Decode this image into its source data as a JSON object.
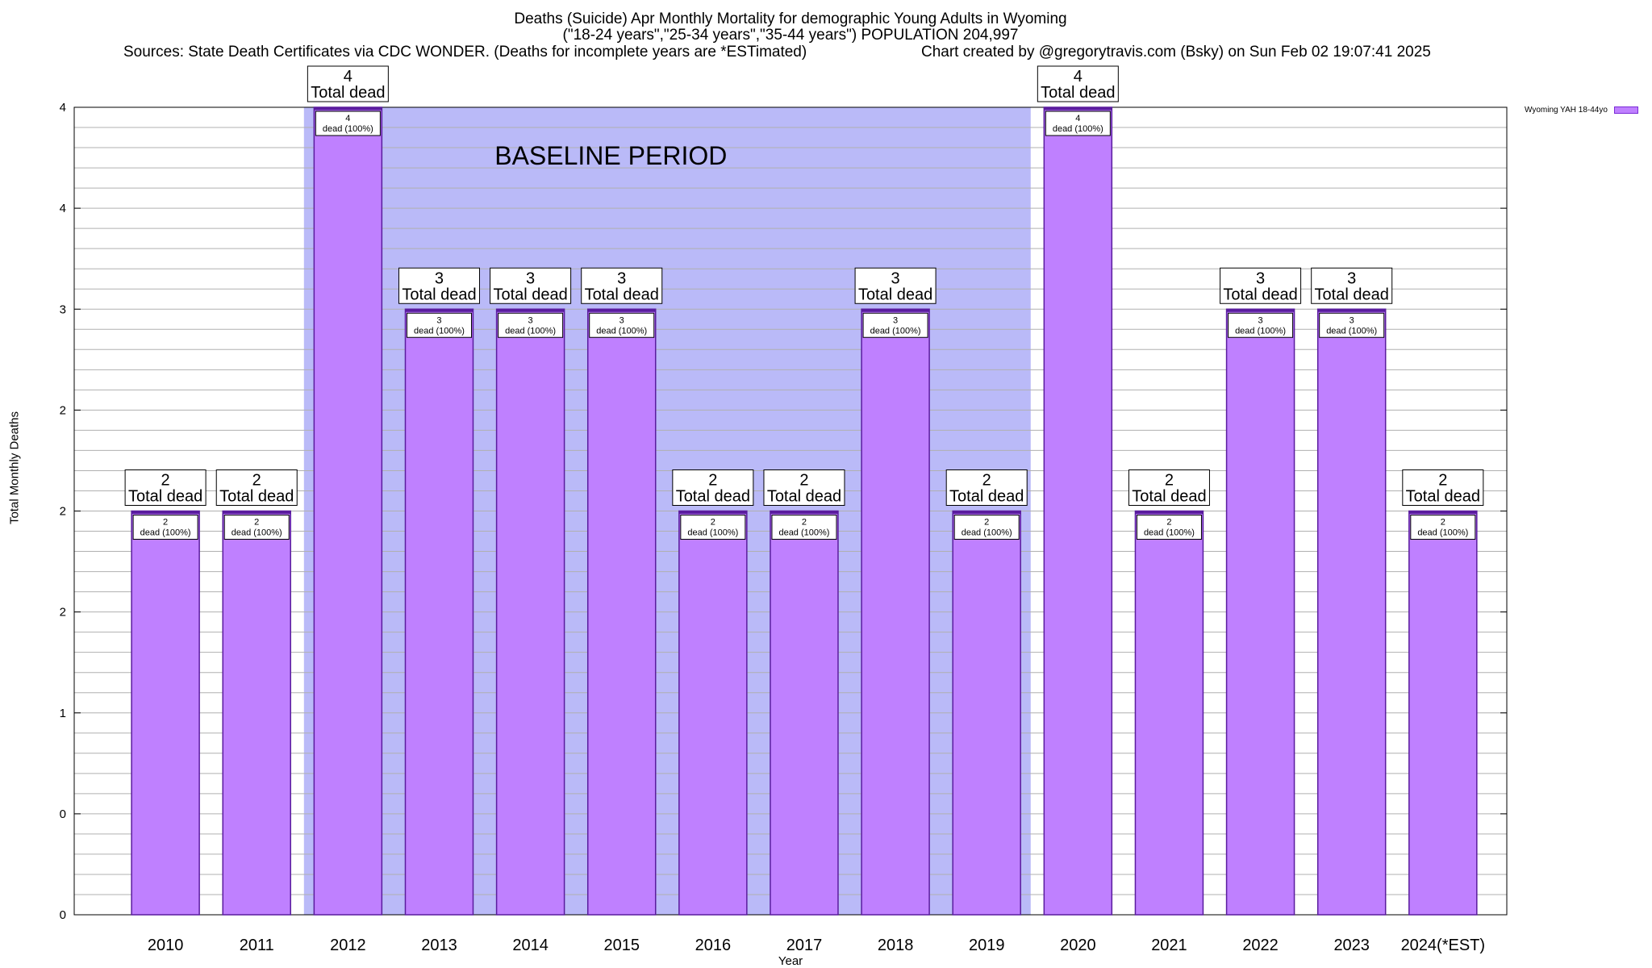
{
  "header": {
    "title_line1": "Deaths (Suicide) Apr Monthly Mortality for demographic Young Adults in Wyoming",
    "title_line2": "(\"18-24 years\",\"25-34 years\",\"35-44 years\") POPULATION 204,997",
    "sources": "Sources: State Death Certificates via CDC WONDER. (Deaths for incomplete years are *ESTimated)",
    "credit": "Chart created by @gregorytravis.com (Bsky) on Sun Feb 02 19:07:41 2025"
  },
  "chart_data": {
    "type": "bar",
    "title": "Deaths (Suicide) Apr Monthly Mortality for demographic Young Adults in Wyoming",
    "subtitle": "(\"18-24 years\",\"25-34 years\",\"35-44 years\") POPULATION 204,997",
    "xlabel": "Year",
    "ylabel": "Total Monthly Deaths",
    "categories": [
      "2010",
      "2011",
      "2012",
      "2013",
      "2014",
      "2015",
      "2016",
      "2017",
      "2018",
      "2019",
      "2020",
      "2021",
      "2022",
      "2023",
      "2024(*EST)"
    ],
    "series": [
      {
        "name": "Wyoming YAH 18-44yo",
        "values": [
          2,
          2,
          4,
          3,
          3,
          3,
          2,
          2,
          3,
          2,
          4,
          2,
          3,
          3,
          2
        ]
      }
    ],
    "ylim": [
      0,
      4
    ],
    "y_tick_labels": [
      "0",
      "0",
      "1",
      "2",
      "2",
      "2",
      "3",
      "4",
      "4"
    ],
    "baseline_period": {
      "label": "BASELINE PERIOD",
      "start": "2012",
      "end": "2019"
    },
    "total_label_text": "Total dead",
    "bar_label_text": "dead (100%)",
    "grid": true,
    "legend_position": "top-right",
    "colors": {
      "bar_fill": "#bf80ff",
      "bar_stroke": "#5a1c9e",
      "baseline_shade": "#babaf8",
      "grid": "#b0b0b0"
    }
  }
}
